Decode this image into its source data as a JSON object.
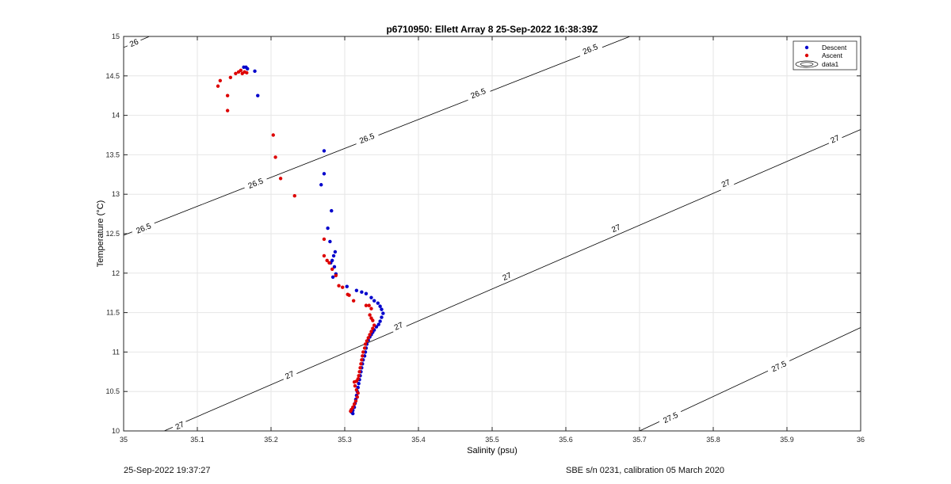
{
  "chart_data": {
    "type": "scatter",
    "title": "p6710950: Ellett Array 8 25-Sep-2022 16:38:39Z",
    "xlabel": "Salinity (psu)",
    "ylabel": "Temperature (°C)",
    "xlim": [
      35,
      36
    ],
    "ylim": [
      10,
      15
    ],
    "xticks": [
      35,
      35.1,
      35.2,
      35.3,
      35.4,
      35.5,
      35.6,
      35.7,
      35.8,
      35.9,
      36
    ],
    "yticks": [
      10,
      10.5,
      11,
      11.5,
      12,
      12.5,
      13,
      13.5,
      14,
      14.5,
      15
    ],
    "grid": true,
    "legend_position": "top-right",
    "legend": [
      "Descent",
      "Ascent",
      "data1"
    ],
    "colors": {
      "descent": "#0000cc",
      "ascent": "#dd0000",
      "contour": "#000000"
    },
    "series": [
      {
        "name": "Descent",
        "points": [
          [
            35.163,
            14.61
          ],
          [
            35.166,
            14.61
          ],
          [
            35.168,
            14.59
          ],
          [
            35.178,
            14.56
          ],
          [
            35.182,
            14.25
          ],
          [
            35.272,
            13.55
          ],
          [
            35.272,
            13.26
          ],
          [
            35.268,
            13.12
          ],
          [
            35.282,
            12.79
          ],
          [
            35.277,
            12.57
          ],
          [
            35.28,
            12.4
          ],
          [
            35.287,
            12.27
          ],
          [
            35.285,
            12.22
          ],
          [
            35.283,
            12.16
          ],
          [
            35.281,
            12.13
          ],
          [
            35.286,
            12.08
          ],
          [
            35.288,
            11.99
          ],
          [
            35.284,
            11.95
          ],
          [
            35.303,
            11.83
          ],
          [
            35.316,
            11.78
          ],
          [
            35.323,
            11.76
          ],
          [
            35.329,
            11.74
          ],
          [
            35.336,
            11.69
          ],
          [
            35.34,
            11.65
          ],
          [
            35.345,
            11.62
          ],
          [
            35.348,
            11.58
          ],
          [
            35.35,
            11.54
          ],
          [
            35.352,
            11.49
          ],
          [
            35.35,
            11.44
          ],
          [
            35.348,
            11.39
          ],
          [
            35.346,
            11.35
          ],
          [
            35.343,
            11.32
          ],
          [
            35.34,
            11.28
          ],
          [
            35.338,
            11.25
          ],
          [
            35.336,
            11.22
          ],
          [
            35.334,
            11.19
          ],
          [
            35.332,
            11.15
          ],
          [
            35.33,
            11.1
          ],
          [
            35.329,
            11.05
          ],
          [
            35.328,
            11.0
          ],
          [
            35.327,
            10.95
          ],
          [
            35.325,
            10.9
          ],
          [
            35.324,
            10.85
          ],
          [
            35.323,
            10.8
          ],
          [
            35.322,
            10.75
          ],
          [
            35.321,
            10.7
          ],
          [
            35.32,
            10.65
          ],
          [
            35.319,
            10.6
          ],
          [
            35.318,
            10.55
          ],
          [
            35.317,
            10.5
          ],
          [
            35.316,
            10.45
          ],
          [
            35.315,
            10.4
          ],
          [
            35.314,
            10.35
          ],
          [
            35.313,
            10.3
          ],
          [
            35.311,
            10.26
          ],
          [
            35.309,
            10.24
          ],
          [
            35.311,
            10.22
          ]
        ]
      },
      {
        "name": "Ascent",
        "points": [
          [
            35.128,
            14.37
          ],
          [
            35.131,
            14.44
          ],
          [
            35.145,
            14.48
          ],
          [
            35.141,
            14.25
          ],
          [
            35.141,
            14.06
          ],
          [
            35.152,
            14.53
          ],
          [
            35.156,
            14.55
          ],
          [
            35.159,
            14.57
          ],
          [
            35.161,
            14.53
          ],
          [
            35.164,
            14.55
          ],
          [
            35.167,
            14.54
          ],
          [
            35.203,
            13.75
          ],
          [
            35.206,
            13.47
          ],
          [
            35.213,
            13.2
          ],
          [
            35.232,
            12.98
          ],
          [
            35.272,
            12.43
          ],
          [
            35.272,
            12.22
          ],
          [
            35.276,
            12.16
          ],
          [
            35.279,
            12.13
          ],
          [
            35.283,
            12.05
          ],
          [
            35.288,
            11.97
          ],
          [
            35.292,
            11.84
          ],
          [
            35.297,
            11.82
          ],
          [
            35.304,
            11.73
          ],
          [
            35.306,
            11.72
          ],
          [
            35.312,
            11.65
          ],
          [
            35.329,
            11.59
          ],
          [
            35.333,
            11.59
          ],
          [
            35.336,
            11.55
          ],
          [
            35.334,
            11.47
          ],
          [
            35.336,
            11.43
          ],
          [
            35.338,
            11.4
          ],
          [
            35.34,
            11.34
          ],
          [
            35.338,
            11.3
          ],
          [
            35.336,
            11.26
          ],
          [
            35.334,
            11.22
          ],
          [
            35.332,
            11.18
          ],
          [
            35.33,
            11.14
          ],
          [
            35.328,
            11.1
          ],
          [
            35.327,
            11.05
          ],
          [
            35.325,
            11.0
          ],
          [
            35.324,
            10.95
          ],
          [
            35.323,
            10.9
          ],
          [
            35.322,
            10.85
          ],
          [
            35.321,
            10.8
          ],
          [
            35.32,
            10.75
          ],
          [
            35.319,
            10.7
          ],
          [
            35.318,
            10.66
          ],
          [
            35.316,
            10.63
          ],
          [
            35.313,
            10.62
          ],
          [
            35.314,
            10.57
          ],
          [
            35.316,
            10.52
          ],
          [
            35.318,
            10.48
          ],
          [
            35.317,
            10.43
          ],
          [
            35.315,
            10.38
          ],
          [
            35.313,
            10.34
          ],
          [
            35.311,
            10.3
          ],
          [
            35.309,
            10.27
          ],
          [
            35.308,
            10.25
          ]
        ]
      }
    ],
    "contours": [
      {
        "level": "26",
        "line": [
          [
            35.0,
            14.86
          ],
          [
            35.035,
            15.0
          ]
        ],
        "labels": [
          {
            "x": 35.014,
            "y": 14.92,
            "text": "26"
          }
        ]
      },
      {
        "level": "26.5",
        "line": [
          [
            35.0,
            12.48
          ],
          [
            35.687,
            15.0
          ]
        ],
        "labels": [
          {
            "x": 35.027,
            "y": 12.57,
            "text": "26.5"
          },
          {
            "x": 35.179,
            "y": 13.14,
            "text": "26.5"
          },
          {
            "x": 35.33,
            "y": 13.71,
            "text": "26.5"
          },
          {
            "x": 35.481,
            "y": 14.28,
            "text": "26.5"
          },
          {
            "x": 35.633,
            "y": 14.84,
            "text": "26.5"
          }
        ]
      },
      {
        "level": "27",
        "line": [
          [
            35.055,
            10.0
          ],
          [
            36.0,
            13.82
          ]
        ],
        "labels": [
          {
            "x": 35.076,
            "y": 10.07,
            "text": "27"
          },
          {
            "x": 35.225,
            "y": 10.71,
            "text": "27"
          },
          {
            "x": 35.373,
            "y": 11.33,
            "text": "27"
          },
          {
            "x": 35.52,
            "y": 11.96,
            "text": "27"
          },
          {
            "x": 35.668,
            "y": 12.57,
            "text": "27"
          },
          {
            "x": 35.817,
            "y": 13.14,
            "text": "27"
          },
          {
            "x": 35.965,
            "y": 13.7,
            "text": "27"
          }
        ]
      },
      {
        "level": "27.5",
        "line": [
          [
            35.7,
            10.0
          ],
          [
            36.0,
            11.31
          ]
        ],
        "labels": [
          {
            "x": 35.742,
            "y": 10.17,
            "text": "27.5"
          },
          {
            "x": 35.889,
            "y": 10.82,
            "text": "27.5"
          }
        ]
      }
    ]
  },
  "footer": {
    "left": "25-Sep-2022 19:37:27",
    "right": "SBE s/n 0231, calibration 05 March 2020"
  }
}
